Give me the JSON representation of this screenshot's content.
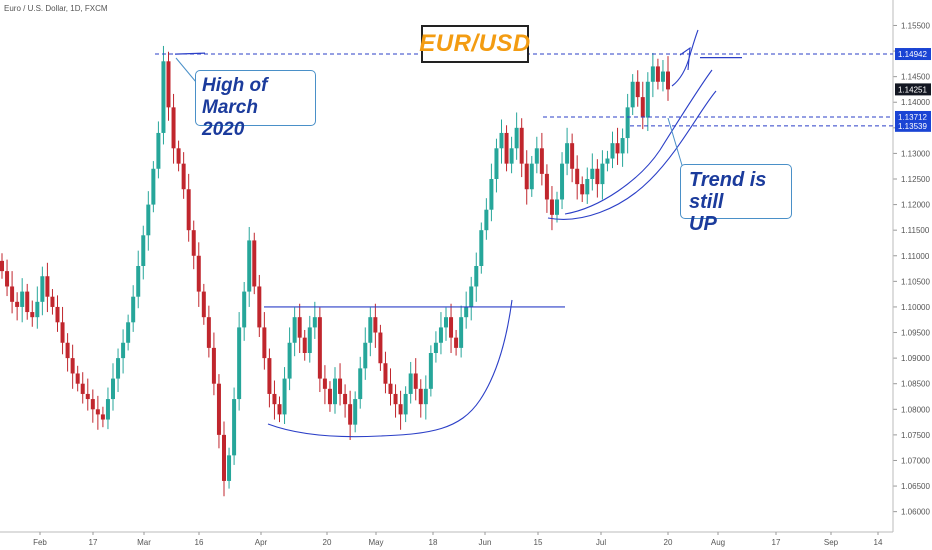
{
  "header": {
    "symbol": "Euro / U.S. Dollar, 1D, FXCM"
  },
  "title_box": {
    "text": "EUR/USD"
  },
  "annotations": {
    "high": {
      "line1": "High of March",
      "line2": "2020"
    },
    "trend": {
      "line1": "Trend is still",
      "line2": "UP"
    }
  },
  "colors": {
    "up": "#26a69a",
    "down": "#c0262d",
    "trendline": "#2b3fc7",
    "level_fill": "#1a44d4",
    "last_fill": "#131722",
    "axis_text": "#555555",
    "grid": "#e0e0e0",
    "title": "#f39c12"
  },
  "chart_data": {
    "type": "candlestick",
    "title": "EUR/USD",
    "xlabel": "",
    "ylabel": "",
    "ylim": [
      1.057,
      1.159
    ],
    "x_tick_labels": [
      "Feb",
      "17",
      "Mar",
      "16",
      "Apr",
      "20",
      "May",
      "18",
      "Jun",
      "15",
      "Jul",
      "20",
      "Aug",
      "17",
      "Sep",
      "14"
    ],
    "y_tick_labels": [
      "1.15500",
      "1.15000",
      "1.14500",
      "1.14000",
      "1.13500",
      "1.13000",
      "1.12500",
      "1.12000",
      "1.11500",
      "1.11000",
      "1.10500",
      "1.10000",
      "1.09500",
      "1.09000",
      "1.08500",
      "1.08000",
      "1.07500",
      "1.07000",
      "1.06500",
      "1.06000"
    ],
    "price_labels": [
      {
        "text": "1.14942",
        "style": "level"
      },
      {
        "text": "1.14251",
        "style": "last"
      },
      {
        "text": "1.13712",
        "style": "level"
      },
      {
        "text": "1.13539",
        "style": "level"
      }
    ],
    "levels": [
      1.14942,
      1.13712,
      1.13539,
      1.1
    ],
    "closes": [
      1.107,
      1.104,
      1.101,
      1.1,
      1.103,
      1.099,
      1.098,
      1.101,
      1.106,
      1.102,
      1.1,
      1.097,
      1.093,
      1.09,
      1.087,
      1.085,
      1.083,
      1.082,
      1.08,
      1.079,
      1.078,
      1.082,
      1.086,
      1.09,
      1.093,
      1.097,
      1.102,
      1.108,
      1.114,
      1.12,
      1.127,
      1.134,
      1.148,
      1.139,
      1.131,
      1.128,
      1.123,
      1.115,
      1.11,
      1.103,
      1.098,
      1.092,
      1.085,
      1.075,
      1.066,
      1.071,
      1.082,
      1.096,
      1.103,
      1.113,
      1.104,
      1.096,
      1.09,
      1.083,
      1.081,
      1.079,
      1.086,
      1.093,
      1.098,
      1.094,
      1.091,
      1.096,
      1.098,
      1.086,
      1.084,
      1.081,
      1.086,
      1.083,
      1.081,
      1.077,
      1.082,
      1.088,
      1.093,
      1.098,
      1.095,
      1.089,
      1.085,
      1.083,
      1.081,
      1.079,
      1.083,
      1.087,
      1.084,
      1.081,
      1.084,
      1.091,
      1.093,
      1.096,
      1.098,
      1.094,
      1.092,
      1.098,
      1.1,
      1.104,
      1.108,
      1.115,
      1.119,
      1.125,
      1.131,
      1.134,
      1.128,
      1.131,
      1.135,
      1.128,
      1.123,
      1.128,
      1.131,
      1.126,
      1.121,
      1.118,
      1.121,
      1.128,
      1.132,
      1.127,
      1.124,
      1.122,
      1.125,
      1.127,
      1.124,
      1.128,
      1.129,
      1.132,
      1.13,
      1.133,
      1.139,
      1.144,
      1.141,
      1.137,
      1.144,
      1.147,
      1.144,
      1.146,
      1.14251
    ],
    "x_range_bars": [
      0,
      176
    ]
  }
}
